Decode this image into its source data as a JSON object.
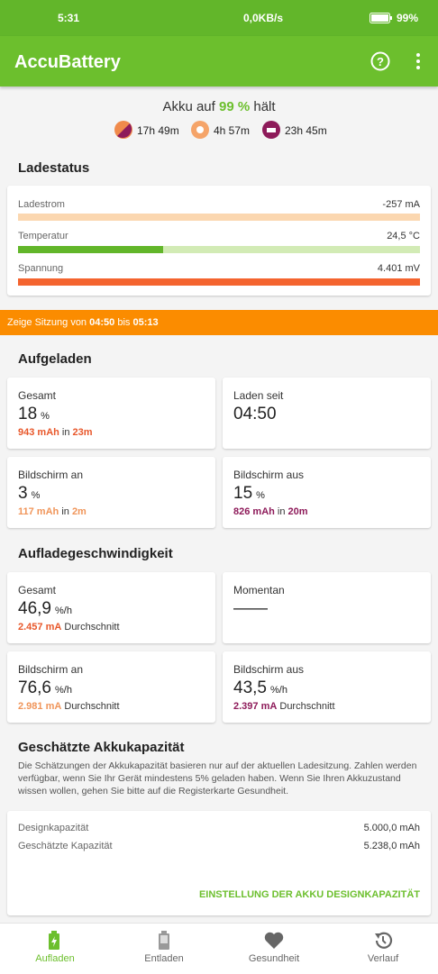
{
  "status_bar": {
    "time": "5:31",
    "network_speed": "0,0KB/s",
    "battery": "99%"
  },
  "app_bar": {
    "title": "AccuBattery"
  },
  "summary": {
    "prefix": "Akku auf",
    "level": "99 %",
    "suffix": "hält",
    "durations": [
      "17h 49m",
      "4h 57m",
      "23h 45m"
    ]
  },
  "charge_status": {
    "title": "Ladestatus",
    "rows": [
      {
        "label": "Ladestrom",
        "value": "-257 mA"
      },
      {
        "label": "Temperatur",
        "value": "24,5 °C"
      },
      {
        "label": "Spannung",
        "value": "4.401 mV"
      }
    ]
  },
  "session": {
    "prefix": "Zeige Sitzung von",
    "start": "04:50",
    "middle": "bis",
    "end": "05:13"
  },
  "charged": {
    "title": "Aufgeladen",
    "cards": [
      {
        "label": "Gesamt",
        "value": "18",
        "unit": "%",
        "amount": "943 mAh",
        "joiner": "in",
        "duration": "23m"
      },
      {
        "label": "Laden seit",
        "value": "04:50"
      },
      {
        "label": "Bildschirm an",
        "value": "3",
        "unit": "%",
        "amount": "117 mAh",
        "joiner": "in",
        "duration": "2m"
      },
      {
        "label": "Bildschirm aus",
        "value": "15",
        "unit": "%",
        "amount": "826 mAh",
        "joiner": "in",
        "duration": "20m"
      }
    ]
  },
  "speed": {
    "title": "Aufladegeschwindigkeit",
    "cards": [
      {
        "label": "Gesamt",
        "value": "46,9",
        "unit": "%/h",
        "current": "2.457 mA",
        "note": "Durchschnitt"
      },
      {
        "label": "Momentan",
        "value": "——"
      },
      {
        "label": "Bildschirm an",
        "value": "76,6",
        "unit": "%/h",
        "current": "2.981 mA",
        "note": "Durchschnitt"
      },
      {
        "label": "Bildschirm aus",
        "value": "43,5",
        "unit": "%/h",
        "current": "2.397 mA",
        "note": "Durchschnitt"
      }
    ]
  },
  "capacity": {
    "title": "Geschätzte Akkukapazität",
    "description": "Die Schätzungen der Akkukapazität basieren nur auf der aktuellen Ladesitzung. Zahlen werden verfügbar, wenn Sie Ihr Gerät mindestens 5% geladen haben. Wenn Sie Ihren Akkuzustand wissen wollen, gehen Sie bitte auf die Registerkarte Gesundheit.",
    "rows": [
      {
        "label": "Designkapazität",
        "value": "5.000,0 mAh"
      },
      {
        "label": "Geschätzte Kapazität",
        "value": "5.238,0 mAh"
      }
    ],
    "action": "EINSTELLUNG DER AKKU DESIGNKAPAZITÄT"
  },
  "bottom_nav": {
    "items": [
      "Aufladen",
      "Entladen",
      "Gesundheit",
      "Verlauf"
    ]
  }
}
